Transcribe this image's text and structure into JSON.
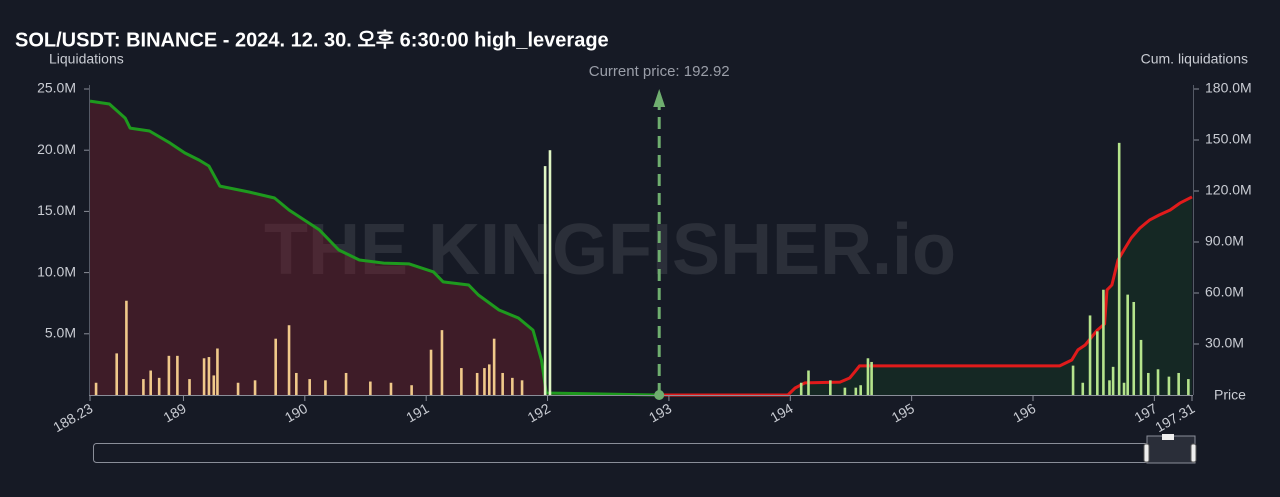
{
  "chart_data": {
    "type": "combo",
    "title": "SOL/USDT: BINANCE - 2024. 12. 30. 오후 6:30:00 high_leverage",
    "y_label": "Liquidations",
    "y2_label": "Cum. liquidations",
    "x_label": "Price",
    "watermark": "THE KINGFISHER.io",
    "annotation": "Current price: 192.92",
    "current_price": 192.92,
    "current_price_color": "#6fae6f",
    "xlim": [
      188.23,
      197.31
    ],
    "xticks": [
      188.23,
      189,
      190,
      191,
      192,
      193,
      194,
      195,
      196,
      197,
      197.31
    ],
    "ylim": [
      0,
      25000000
    ],
    "yticks": [
      {
        "value": 5000000,
        "label": "5.0M"
      },
      {
        "value": 10000000,
        "label": "10.0M"
      },
      {
        "value": 15000000,
        "label": "15.0M"
      },
      {
        "value": 20000000,
        "label": "20.0M"
      },
      {
        "value": 25000000,
        "label": "25.0M"
      }
    ],
    "y2lim": [
      0,
      180000000
    ],
    "y2ticks": [
      {
        "value": 30000000,
        "label": "30.0M"
      },
      {
        "value": 60000000,
        "label": "60.0M"
      },
      {
        "value": 90000000,
        "label": "90.0M"
      },
      {
        "value": 120000000,
        "label": "120.0M"
      },
      {
        "value": 150000000,
        "label": "150.0M"
      },
      {
        "value": 180000000,
        "label": "180.0M"
      }
    ],
    "series": [
      {
        "type": "line",
        "axis": "y2",
        "color": "#1e9a1e",
        "fill": "rgba(120,30,45,0.42)",
        "x": [
          188.23,
          188.39,
          188.52,
          188.56,
          188.72,
          188.89,
          189.01,
          189.13,
          189.21,
          189.3,
          189.54,
          189.75,
          189.87,
          190.12,
          190.28,
          190.45,
          190.65,
          190.86,
          191.06,
          191.14,
          191.35,
          191.43,
          191.6,
          191.76,
          191.88,
          191.95,
          191.99,
          192.92
        ],
        "values": [
          172900000,
          171200000,
          162900000,
          157000000,
          155300000,
          148200000,
          142400000,
          138200000,
          134700000,
          122900000,
          119400000,
          115900000,
          108800000,
          97100000,
          85300000,
          79400000,
          77600000,
          77100000,
          72400000,
          66500000,
          64700000,
          58800000,
          50000000,
          45300000,
          38200000,
          20600000,
          1200000,
          0
        ]
      },
      {
        "type": "line",
        "axis": "y2",
        "color": "#e01b1b",
        "fill": "rgba(20,70,35,0.35)",
        "x": [
          192.92,
          193.98,
          194.04,
          194.12,
          194.41,
          194.49,
          194.53,
          194.57,
          196.22,
          196.32,
          196.37,
          196.43,
          196.53,
          196.59,
          196.61,
          196.65,
          196.7,
          196.76,
          196.81,
          196.88,
          196.96,
          197.04,
          197.13,
          197.21,
          197.31
        ],
        "values": [
          0,
          0,
          4100000,
          7100000,
          7600000,
          10000000,
          13500000,
          17100000,
          17100000,
          20600000,
          26500000,
          29400000,
          38200000,
          41800000,
          61800000,
          64700000,
          79400000,
          86500000,
          92400000,
          98200000,
          102900000,
          105900000,
          108800000,
          112900000,
          116500000
        ]
      },
      {
        "type": "bar",
        "color": "#f0c98a",
        "x": [
          188.28,
          188.45,
          188.53,
          188.67,
          188.73,
          188.8,
          188.88,
          188.95,
          189.05,
          189.17,
          189.21,
          189.25,
          189.28,
          189.45,
          189.59,
          189.76,
          189.87,
          189.93,
          190.04,
          190.17,
          190.34,
          190.54,
          190.71,
          190.88,
          191.04,
          191.13,
          191.29,
          191.42,
          191.48,
          191.52,
          191.56,
          191.63,
          191.71,
          191.79
        ],
        "values": [
          1000000,
          3400000,
          7700000,
          1300000,
          2000000,
          1400000,
          3200000,
          3200000,
          1300000,
          3000000,
          3100000,
          1600000,
          3800000,
          1000000,
          1200000,
          4600000,
          5700000,
          1800000,
          1300000,
          1200000,
          1800000,
          1100000,
          1000000,
          800000,
          3700000,
          5300000,
          2200000,
          1800000,
          2200000,
          2500000,
          4600000,
          1800000,
          1400000,
          1200000
        ]
      },
      {
        "type": "bar",
        "color": "#dff5c4",
        "x": [
          191.98,
          192.02
        ],
        "values": [
          18700000,
          20000000
        ]
      },
      {
        "type": "bar",
        "color": "#b5e48c",
        "x": [
          194.09,
          194.15,
          194.33,
          194.45,
          194.54,
          194.58,
          194.64,
          194.67,
          196.33,
          196.41,
          196.47,
          196.53,
          196.58,
          196.63,
          196.66,
          196.71,
          196.75,
          196.78,
          196.83,
          196.89,
          196.95,
          197.03,
          197.12,
          197.2,
          197.28
        ],
        "values": [
          1000000,
          2000000,
          1200000,
          600000,
          600000,
          800000,
          3000000,
          2700000,
          2400000,
          1000000,
          6500000,
          5200000,
          8600000,
          1200000,
          2300000,
          20600000,
          1000000,
          8200000,
          7600000,
          4500000,
          1800000,
          2100000,
          1500000,
          1800000,
          1300000
        ]
      }
    ]
  }
}
